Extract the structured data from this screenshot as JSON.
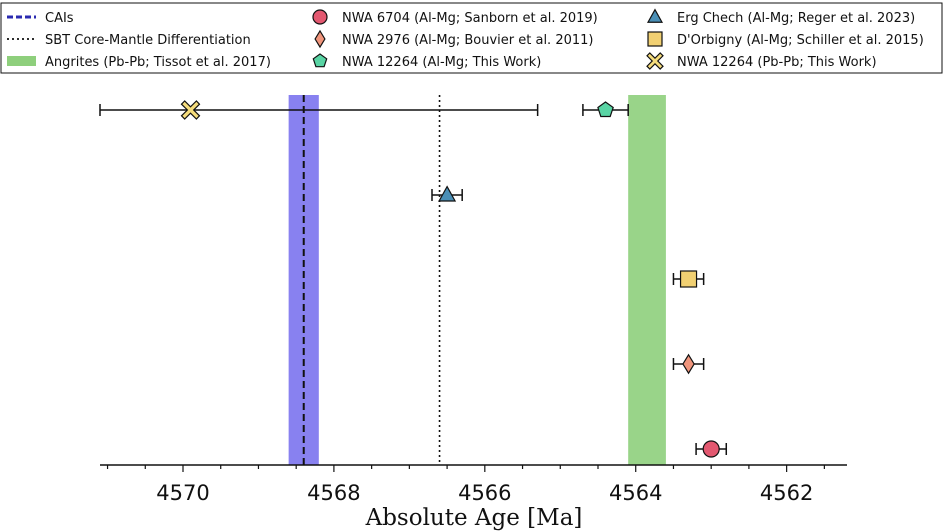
{
  "chart_data": {
    "type": "scatter",
    "orientation": "horizontal",
    "xlabel": "Absolute Age [Ma]",
    "xlim": [
      4571.1,
      4561.2
    ],
    "x_ticks": [
      4570,
      4568,
      4566,
      4564,
      4562
    ],
    "x_axis_reversed": true,
    "y_axis_visible": false,
    "grid": false,
    "legend_position": "top",
    "bands": [
      {
        "key": "cai",
        "label": "CAIs",
        "x_range": [
          4568.6,
          4568.2
        ],
        "center": 4568.4,
        "color": "#7b73ee",
        "line_color": "#2a2ab0"
      },
      {
        "key": "angrite",
        "label": "Angrites (Pb-Pb; Tissot et al. 2017)",
        "x_range": [
          4564.1,
          4563.6
        ],
        "color": "#8ecf7c"
      }
    ],
    "lines": [
      {
        "key": "sbt",
        "label": "SBT Core-Mantle Differentiation",
        "x": 4566.6,
        "style": "dotted",
        "color": "#111111"
      }
    ],
    "series": [
      {
        "key": "nwa6704",
        "name": "NWA 6704 (Al-Mg; Sanborn et al. 2019)",
        "marker": "circle",
        "color": "#e35870",
        "x": 4563.0,
        "err": 0.2,
        "row": 0
      },
      {
        "key": "nwa2976",
        "name": "NWA 2976 (Al-Mg; Bouvier et al. 2011)",
        "marker": "diamond",
        "color": "#f0957c",
        "x": 4563.3,
        "err": 0.2,
        "row": 1
      },
      {
        "key": "dorbigny",
        "name": "D'Orbigny (Al-Mg; Schiller et al. 2015)",
        "marker": "square",
        "color": "#f1d072",
        "x": 4563.3,
        "err": 0.2,
        "row": 2
      },
      {
        "key": "erg",
        "name": "Erg Chech (Al-Mg; Reger et al. 2023)",
        "marker": "triangle",
        "color": "#4a8fb6",
        "x": 4566.5,
        "err": 0.2,
        "row": 3
      },
      {
        "key": "nwa12264_almg",
        "name": "NWA 12264 (Al-Mg; This Work)",
        "marker": "pentagon",
        "color": "#59d4a4",
        "x": 4564.4,
        "err": 0.3,
        "row": 4
      },
      {
        "key": "nwa12264_pbpb",
        "name": "NWA 12264 (Pb-Pb; This Work)",
        "marker": "cross",
        "color": "#f5dc7c",
        "x": 4569.9,
        "x_err_range": [
          4571.1,
          4565.3
        ],
        "row": 4
      }
    ]
  }
}
